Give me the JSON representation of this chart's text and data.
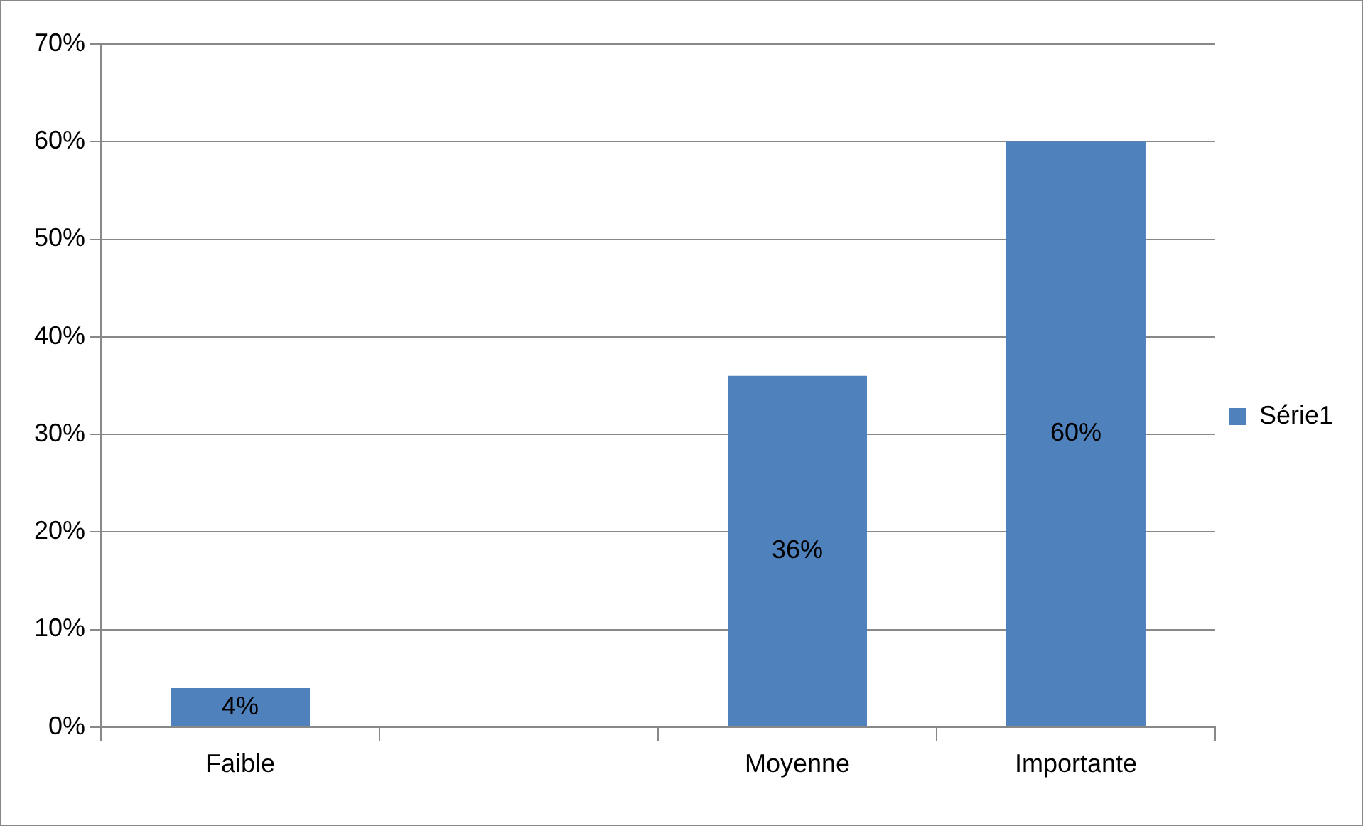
{
  "chart_data": {
    "type": "bar",
    "categories": [
      "Faible",
      null,
      "Moyenne",
      "Importante"
    ],
    "series": [
      {
        "name": "Série1",
        "color": "#4f81bd",
        "values": [
          4,
          null,
          36,
          60
        ]
      }
    ],
    "value_labels": [
      "4%",
      null,
      "36%",
      "60%"
    ],
    "ylim": [
      0,
      70
    ],
    "yticks": [
      {
        "value": 0,
        "label": "0%"
      },
      {
        "value": 10,
        "label": "10%"
      },
      {
        "value": 20,
        "label": "20%"
      },
      {
        "value": 30,
        "label": "30%"
      },
      {
        "value": 40,
        "label": "40%"
      },
      {
        "value": 50,
        "label": "50%"
      },
      {
        "value": 60,
        "label": "60%"
      },
      {
        "value": 70,
        "label": "70%"
      }
    ],
    "grid": "y",
    "legend": "right"
  }
}
